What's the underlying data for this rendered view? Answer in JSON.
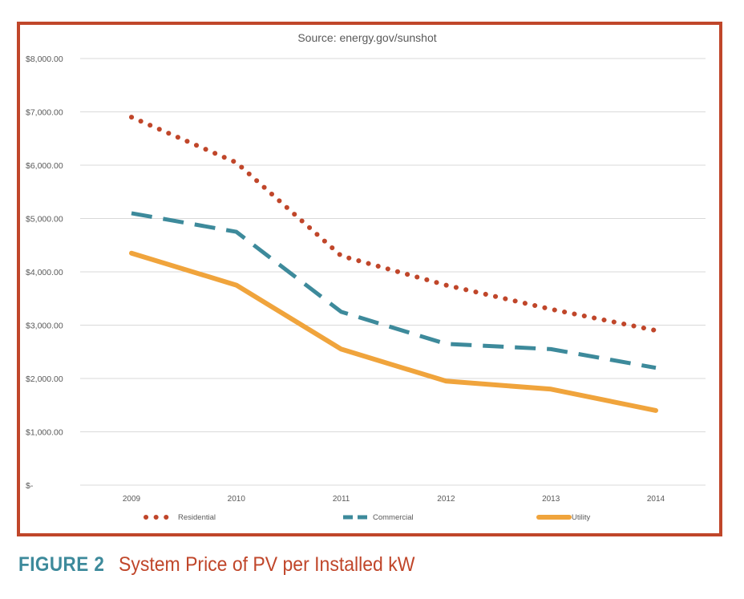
{
  "chart_data": {
    "type": "line",
    "title": "Source:  energy.gov/sunshot",
    "categories": [
      "2009",
      "2010",
      "2011",
      "2012",
      "2013",
      "2014"
    ],
    "y_ticks": [
      "$-",
      "$1,000.00",
      "$2,000.00",
      "$3,000.00",
      "$4,000.00",
      "$5,000.00",
      "$6,000.00",
      "$7,000.00",
      "$8,000.00"
    ],
    "ylim": [
      0,
      8000
    ],
    "grid": true,
    "legend_position": "bottom",
    "series": [
      {
        "name": "Residential",
        "values": [
          6900,
          6050,
          4300,
          3750,
          3300,
          2900
        ],
        "color": "#c0462a",
        "style": "dotted"
      },
      {
        "name": "Commercial",
        "values": [
          5100,
          4750,
          3250,
          2650,
          2550,
          2200
        ],
        "color": "#3d8a9b",
        "style": "dashed"
      },
      {
        "name": "Utility",
        "values": [
          4350,
          3750,
          2550,
          1950,
          1800,
          1400
        ],
        "color": "#f0a43c",
        "style": "solid"
      }
    ]
  },
  "caption": {
    "label": "FIGURE 2",
    "title": "System Price of PV per Installed kW"
  }
}
